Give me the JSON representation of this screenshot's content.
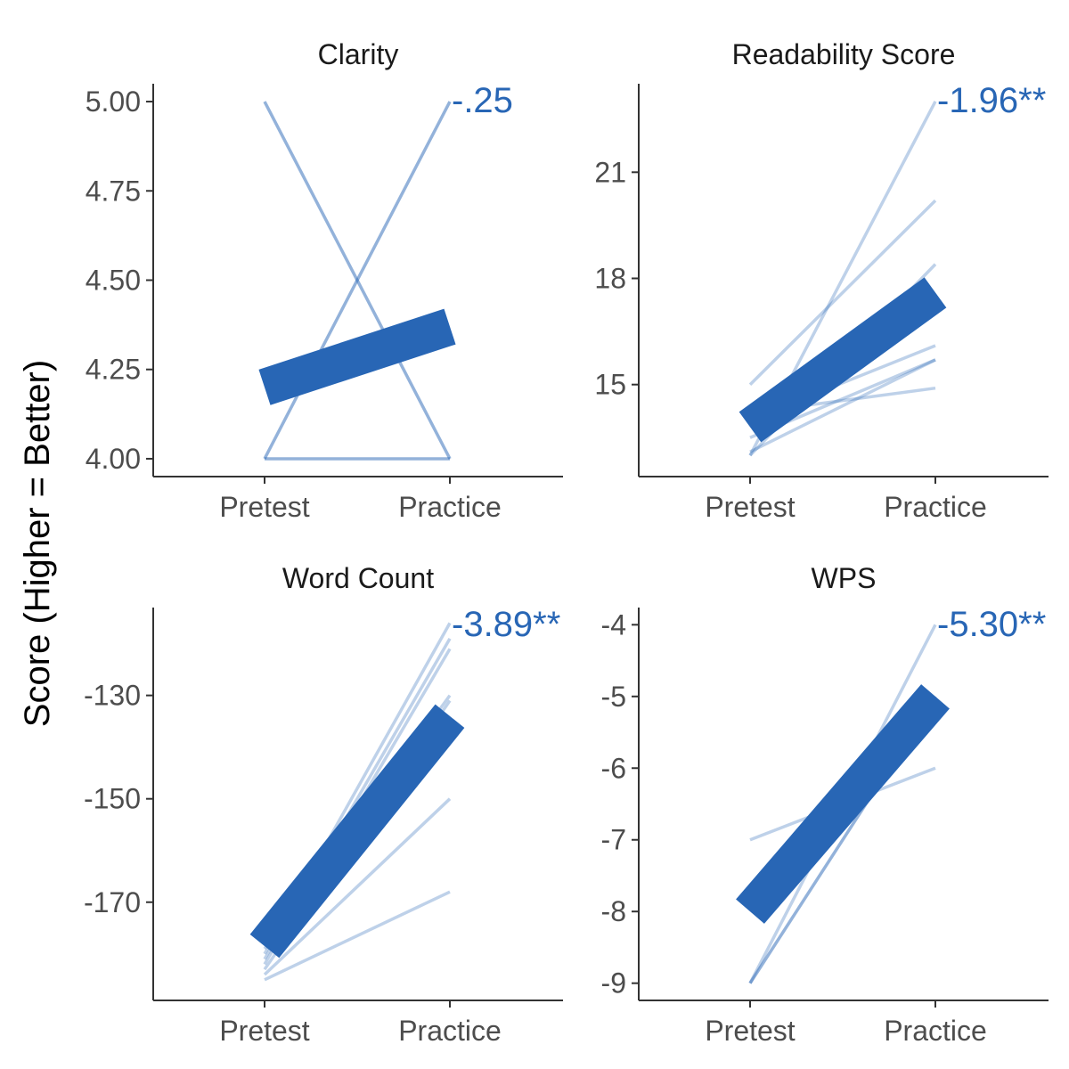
{
  "figure": {
    "ylabel": "Score (Higher = Better)",
    "line_color": "#2866b5"
  },
  "chart_data": [
    {
      "type": "line",
      "title": "Clarity",
      "categories": [
        "Pretest",
        "Practice"
      ],
      "yticks": [
        "4.00",
        "4.25",
        "4.50",
        "4.75",
        "5.00"
      ],
      "ylim": [
        3.95,
        5.05
      ],
      "annotation": "-.25",
      "series": [
        {
          "values": [
            5.0,
            4.0
          ],
          "alpha": 0.5
        },
        {
          "values": [
            4.0,
            5.0
          ],
          "alpha": 0.5
        },
        {
          "values": [
            4.0,
            4.0
          ],
          "alpha": 0.5
        }
      ],
      "mean": [
        4.2,
        4.37
      ]
    },
    {
      "type": "line",
      "title": "Readability Score",
      "categories": [
        "Pretest",
        "Practice"
      ],
      "yticks": [
        "15",
        "18",
        "21"
      ],
      "ylim": [
        12.4,
        23.5
      ],
      "annotation": "-1.96**",
      "series": [
        {
          "values": [
            13.0,
            23.0
          ],
          "alpha": 0.3
        },
        {
          "values": [
            15.0,
            20.2
          ],
          "alpha": 0.3
        },
        {
          "values": [
            13.0,
            18.4
          ],
          "alpha": 0.3
        },
        {
          "values": [
            14.0,
            16.1
          ],
          "alpha": 0.3
        },
        {
          "values": [
            13.5,
            15.7
          ],
          "alpha": 0.3
        },
        {
          "values": [
            14.2,
            14.9
          ],
          "alpha": 0.3
        },
        {
          "values": [
            13.1,
            15.7
          ],
          "alpha": 0.3
        }
      ],
      "mean": [
        13.8,
        17.6
      ]
    },
    {
      "type": "line",
      "title": "Word Count",
      "categories": [
        "Pretest",
        "Practice"
      ],
      "yticks": [
        "-130",
        "-150",
        "-170"
      ],
      "ylim": [
        -189,
        -113
      ],
      "annotation": "-3.89**",
      "series": [
        {
          "values": [
            -180,
            -116
          ],
          "alpha": 0.3
        },
        {
          "values": [
            -181,
            -119
          ],
          "alpha": 0.3
        },
        {
          "values": [
            -182,
            -121
          ],
          "alpha": 0.3
        },
        {
          "values": [
            -183,
            -131
          ],
          "alpha": 0.3
        },
        {
          "values": [
            -184,
            -150
          ],
          "alpha": 0.3
        },
        {
          "values": [
            -185,
            -168
          ],
          "alpha": 0.3
        },
        {
          "values": [
            -179,
            -130
          ],
          "alpha": 0.3
        }
      ],
      "mean": [
        -178.5,
        -134
      ]
    },
    {
      "type": "line",
      "title": "WPS",
      "categories": [
        "Pretest",
        "Practice"
      ],
      "yticks": [
        "-4",
        "-5",
        "-6",
        "-7",
        "-8",
        "-9"
      ],
      "ylim": [
        -9.24,
        -3.76
      ],
      "annotation": "-5.30**",
      "series": [
        {
          "values": [
            -9.0,
            -4.0
          ],
          "alpha": 0.3
        },
        {
          "values": [
            -7.0,
            -6.0
          ],
          "alpha": 0.3
        },
        {
          "values": [
            -9.0,
            -5.0
          ],
          "alpha": 0.5
        }
      ],
      "mean": [
        -8.0,
        -5.0
      ]
    }
  ]
}
